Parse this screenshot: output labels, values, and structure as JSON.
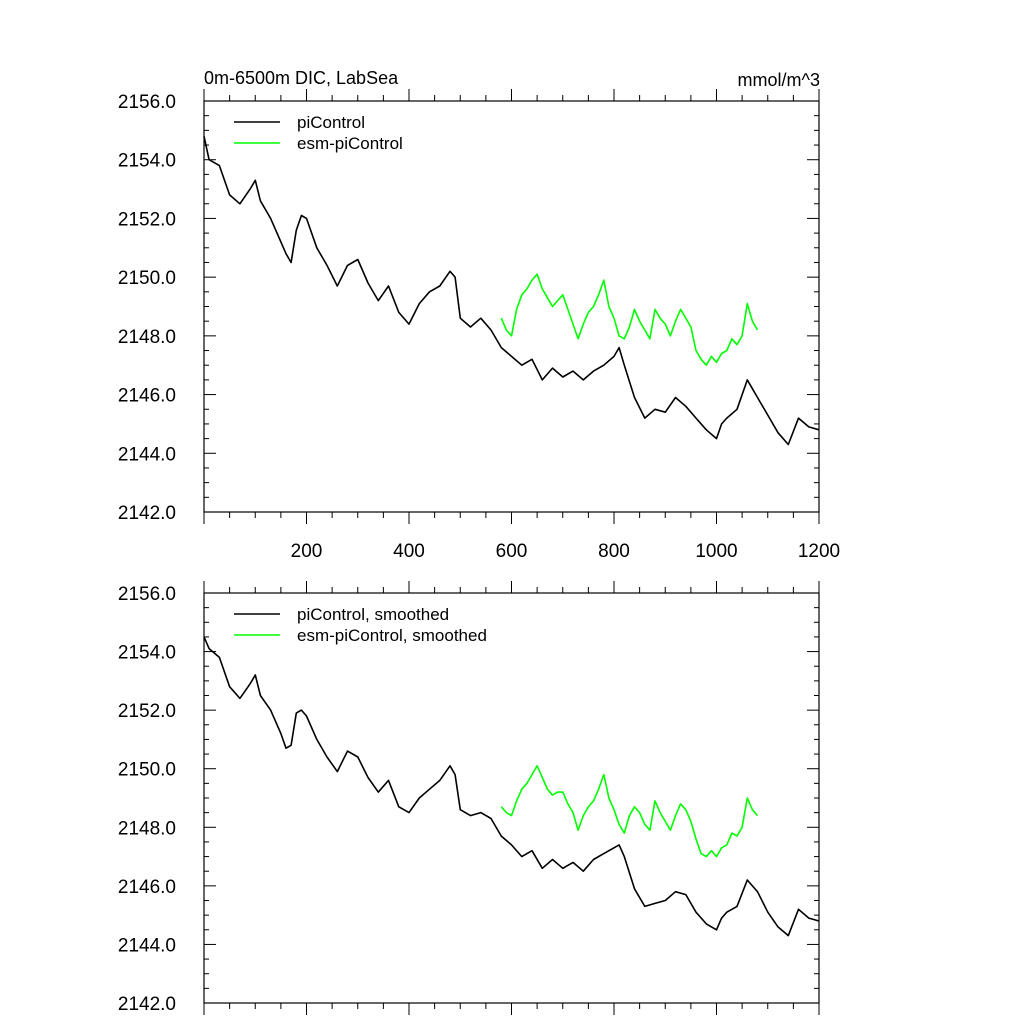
{
  "figure": {
    "title_left": "0m-6500m DIC, LabSea",
    "title_right": "mmol/m^3"
  },
  "chart_data": [
    {
      "type": "line",
      "title": "0m-6500m DIC, LabSea",
      "units": "mmol/m^3",
      "xlim": [
        0,
        1200
      ],
      "ylim": [
        2142.0,
        2156.0
      ],
      "xticks": [
        200,
        400,
        600,
        800,
        1000,
        1200
      ],
      "xtick_labels": [
        "200",
        "400",
        "600",
        "800",
        "1000",
        "1200"
      ],
      "yticks": [
        2142,
        2144,
        2146,
        2148,
        2150,
        2152,
        2154,
        2156
      ],
      "ytick_labels": [
        "2142.0",
        "2144.0",
        "2146.0",
        "2148.0",
        "2150.0",
        "2152.0",
        "2154.0",
        "2156.0"
      ],
      "legend_position": "top-left",
      "series": [
        {
          "name": "piControl",
          "color": "#000000",
          "x": [
            0,
            10,
            30,
            50,
            70,
            90,
            100,
            110,
            130,
            150,
            160,
            170,
            180,
            190,
            200,
            220,
            240,
            260,
            280,
            300,
            320,
            340,
            360,
            380,
            400,
            420,
            440,
            460,
            480,
            490,
            500,
            520,
            540,
            560,
            580,
            600,
            620,
            640,
            660,
            680,
            700,
            720,
            740,
            760,
            780,
            800,
            810,
            820,
            840,
            860,
            880,
            900,
            920,
            940,
            960,
            980,
            1000,
            1010,
            1020,
            1040,
            1060,
            1070,
            1080,
            1100,
            1120,
            1140,
            1160,
            1180,
            1200
          ],
          "values": [
            2154.8,
            2154.0,
            2153.8,
            2152.8,
            2152.5,
            2153.0,
            2153.3,
            2152.6,
            2152.0,
            2151.2,
            2150.8,
            2150.5,
            2151.6,
            2152.1,
            2152.0,
            2151.0,
            2150.4,
            2149.7,
            2150.4,
            2150.6,
            2149.8,
            2149.2,
            2149.7,
            2148.8,
            2148.4,
            2149.1,
            2149.5,
            2149.7,
            2150.2,
            2150.0,
            2148.6,
            2148.3,
            2148.6,
            2148.2,
            2147.6,
            2147.3,
            2147.0,
            2147.2,
            2146.5,
            2146.9,
            2146.6,
            2146.8,
            2146.5,
            2146.8,
            2147.0,
            2147.3,
            2147.6,
            2147.0,
            2145.9,
            2145.2,
            2145.5,
            2145.4,
            2145.9,
            2145.6,
            2145.2,
            2144.8,
            2144.5,
            2145.0,
            2145.2,
            2145.5,
            2146.5,
            2146.2,
            2145.9,
            2145.3,
            2144.7,
            2144.3,
            2145.2,
            2144.9,
            2144.8
          ]
        },
        {
          "name": "esm-piControl",
          "color": "#00ff00",
          "x": [
            580,
            590,
            600,
            610,
            620,
            630,
            640,
            650,
            660,
            670,
            680,
            690,
            700,
            710,
            720,
            730,
            740,
            750,
            760,
            770,
            780,
            790,
            800,
            810,
            820,
            830,
            840,
            850,
            860,
            870,
            880,
            890,
            900,
            910,
            920,
            930,
            940,
            950,
            960,
            970,
            980,
            990,
            1000,
            1010,
            1020,
            1030,
            1040,
            1050,
            1060,
            1070,
            1080
          ],
          "values": [
            2148.6,
            2148.2,
            2148.0,
            2148.9,
            2149.4,
            2149.6,
            2149.9,
            2150.1,
            2149.6,
            2149.3,
            2149.0,
            2149.2,
            2149.4,
            2148.9,
            2148.4,
            2147.9,
            2148.4,
            2148.8,
            2149.0,
            2149.4,
            2149.9,
            2149.0,
            2148.6,
            2148.0,
            2147.9,
            2148.3,
            2148.9,
            2148.5,
            2148.2,
            2147.9,
            2148.9,
            2148.6,
            2148.4,
            2148.0,
            2148.5,
            2148.9,
            2148.6,
            2148.3,
            2147.5,
            2147.2,
            2147.0,
            2147.3,
            2147.1,
            2147.4,
            2147.5,
            2147.9,
            2147.7,
            2148.0,
            2149.1,
            2148.5,
            2148.2
          ]
        }
      ]
    },
    {
      "type": "line",
      "title": "",
      "xlim": [
        0,
        1200
      ],
      "ylim": [
        2142.0,
        2156.0
      ],
      "xticks": [
        200,
        400,
        600,
        800,
        1000,
        1200
      ],
      "xtick_labels": [],
      "yticks": [
        2142,
        2144,
        2146,
        2148,
        2150,
        2152,
        2154,
        2156
      ],
      "ytick_labels": [
        "2142.0",
        "2144.0",
        "2146.0",
        "2148.0",
        "2150.0",
        "2152.0",
        "2154.0",
        "2156.0"
      ],
      "legend_position": "top-left",
      "series": [
        {
          "name": "piControl, smoothed",
          "color": "#000000",
          "x": [
            0,
            10,
            30,
            50,
            70,
            90,
            100,
            110,
            130,
            150,
            160,
            170,
            180,
            190,
            200,
            220,
            240,
            260,
            280,
            300,
            320,
            340,
            360,
            380,
            400,
            420,
            440,
            460,
            480,
            490,
            500,
            520,
            540,
            560,
            580,
            600,
            620,
            640,
            660,
            680,
            700,
            720,
            740,
            760,
            780,
            800,
            810,
            820,
            840,
            860,
            880,
            900,
            920,
            940,
            960,
            980,
            1000,
            1010,
            1020,
            1040,
            1060,
            1070,
            1080,
            1100,
            1120,
            1140,
            1160,
            1180,
            1200
          ],
          "values": [
            2154.5,
            2154.1,
            2153.8,
            2152.8,
            2152.4,
            2152.9,
            2153.2,
            2152.5,
            2152.0,
            2151.2,
            2150.7,
            2150.8,
            2151.9,
            2152.0,
            2151.8,
            2151.0,
            2150.4,
            2149.9,
            2150.6,
            2150.4,
            2149.7,
            2149.2,
            2149.6,
            2148.7,
            2148.5,
            2149.0,
            2149.3,
            2149.6,
            2150.1,
            2149.8,
            2148.6,
            2148.4,
            2148.5,
            2148.3,
            2147.7,
            2147.4,
            2147.0,
            2147.2,
            2146.6,
            2146.9,
            2146.6,
            2146.8,
            2146.5,
            2146.9,
            2147.1,
            2147.3,
            2147.4,
            2147.0,
            2145.9,
            2145.3,
            2145.4,
            2145.5,
            2145.8,
            2145.7,
            2145.1,
            2144.7,
            2144.5,
            2144.9,
            2145.1,
            2145.3,
            2146.2,
            2146.0,
            2145.8,
            2145.1,
            2144.6,
            2144.3,
            2145.2,
            2144.9,
            2144.8
          ]
        },
        {
          "name": "esm-piControl, smoothed",
          "color": "#00ff00",
          "x": [
            580,
            590,
            600,
            610,
            620,
            630,
            640,
            650,
            660,
            670,
            680,
            690,
            700,
            710,
            720,
            730,
            740,
            750,
            760,
            770,
            780,
            790,
            800,
            810,
            820,
            830,
            840,
            850,
            860,
            870,
            880,
            890,
            900,
            910,
            920,
            930,
            940,
            950,
            960,
            970,
            980,
            990,
            1000,
            1010,
            1020,
            1030,
            1040,
            1050,
            1060,
            1070,
            1080
          ],
          "values": [
            2148.7,
            2148.5,
            2148.4,
            2148.9,
            2149.3,
            2149.5,
            2149.8,
            2150.1,
            2149.7,
            2149.3,
            2149.1,
            2149.2,
            2149.2,
            2148.8,
            2148.5,
            2147.9,
            2148.4,
            2148.7,
            2148.9,
            2149.3,
            2149.8,
            2149.0,
            2148.6,
            2148.1,
            2147.8,
            2148.4,
            2148.7,
            2148.5,
            2148.1,
            2147.9,
            2148.9,
            2148.5,
            2148.2,
            2147.9,
            2148.4,
            2148.8,
            2148.6,
            2148.2,
            2147.6,
            2147.1,
            2147.0,
            2147.2,
            2147.0,
            2147.3,
            2147.4,
            2147.8,
            2147.7,
            2148.0,
            2149.0,
            2148.6,
            2148.4
          ]
        }
      ]
    }
  ]
}
